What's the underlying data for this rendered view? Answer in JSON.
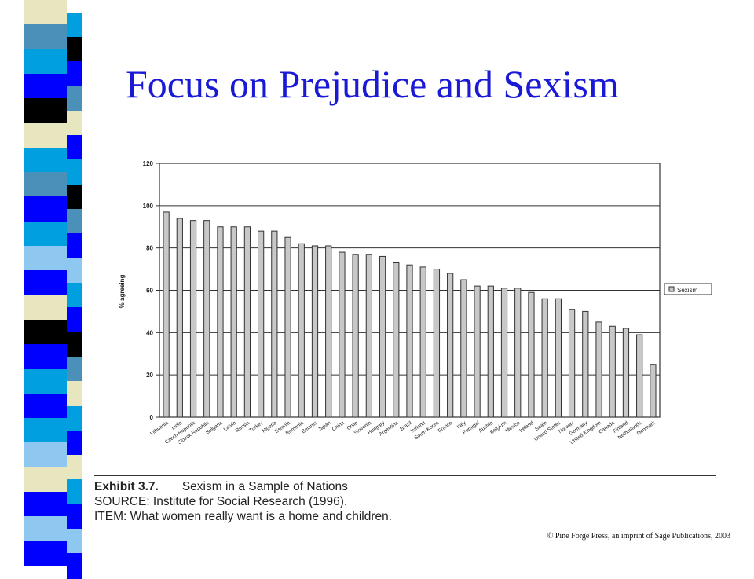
{
  "slide": {
    "title": "Focus on Prejudice and Sexism",
    "copyright": "© Pine Forge Press, an imprint of Sage Publications, 2003"
  },
  "exhibit": {
    "number": "Exhibit 3.7.",
    "title": "Sexism in a Sample of Nations",
    "source": "SOURCE: Institute for Social Research (1996).",
    "item": "ITEM: What women really want is a home and children."
  },
  "colors": {
    "title": "#1a1ad6",
    "bar_fill": "#c8c8c8",
    "bar_stroke": "#333333",
    "stripe_blue": "#0000ff",
    "stripe_teal": "#4a90b8",
    "stripe_cyan": "#00a0e0",
    "stripe_light_blue": "#8ec8f0",
    "stripe_cream": "#e8e6bf",
    "stripe_black": "#000000"
  },
  "chart_data": {
    "type": "bar",
    "title": "",
    "xlabel": "",
    "ylabel": "% agreeing",
    "ylim": [
      0,
      120
    ],
    "yticks": [
      0,
      20,
      40,
      60,
      80,
      100,
      120
    ],
    "grid": true,
    "legend_position": "right",
    "categories": [
      "Lithuania",
      "India",
      "Czech Republic",
      "Slovak Republic",
      "Bulgaria",
      "Latvia",
      "Russia",
      "Turkey",
      "Nigeria",
      "Estonia",
      "Romania",
      "Belarus",
      "Japan",
      "China",
      "Chile",
      "Slovenia",
      "Hungary",
      "Argentina",
      "Brazil",
      "Iceland",
      "South Korea",
      "France",
      "Italy",
      "Portugal",
      "Austria",
      "Belgium",
      "Mexico",
      "Ireland",
      "Spain",
      "United States",
      "Norway",
      "Germany",
      "United Kingdom",
      "Canada",
      "Finland",
      "Netherlands",
      "Denmark"
    ],
    "series": [
      {
        "name": "Sexism",
        "values": [
          97,
          94,
          93,
          93,
          90,
          90,
          90,
          88,
          88,
          85,
          82,
          81,
          81,
          78,
          77,
          77,
          76,
          73,
          72,
          71,
          70,
          68,
          65,
          62,
          62,
          61,
          61,
          59,
          56,
          56,
          51,
          50,
          45,
          43,
          42,
          39,
          25
        ]
      }
    ]
  }
}
